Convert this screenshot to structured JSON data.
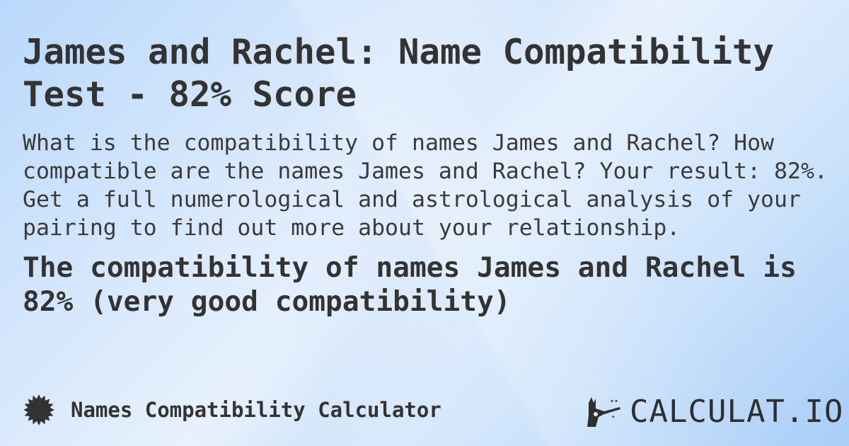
{
  "title": "James and Rachel: Name Compatibility Test - 82% Score",
  "description": "What is the compatibility of names James and Rachel? How compatible are the names James and Rachel? Your result: 82%. Get a full numerological and astrological analysis of your pairing to find out more about your relationship.",
  "result": "The compatibility of names James and Rachel is 82% (very good compatibility)",
  "footer": {
    "calculator_name": "Names Compatibility Calculator",
    "badge_icon": "starburst-badge-icon"
  },
  "logo": {
    "text": "CALCULAT.IO",
    "icon": "magic-wand-hand-icon"
  },
  "colors": {
    "text": "#333333",
    "background": "#c8e0fa"
  }
}
